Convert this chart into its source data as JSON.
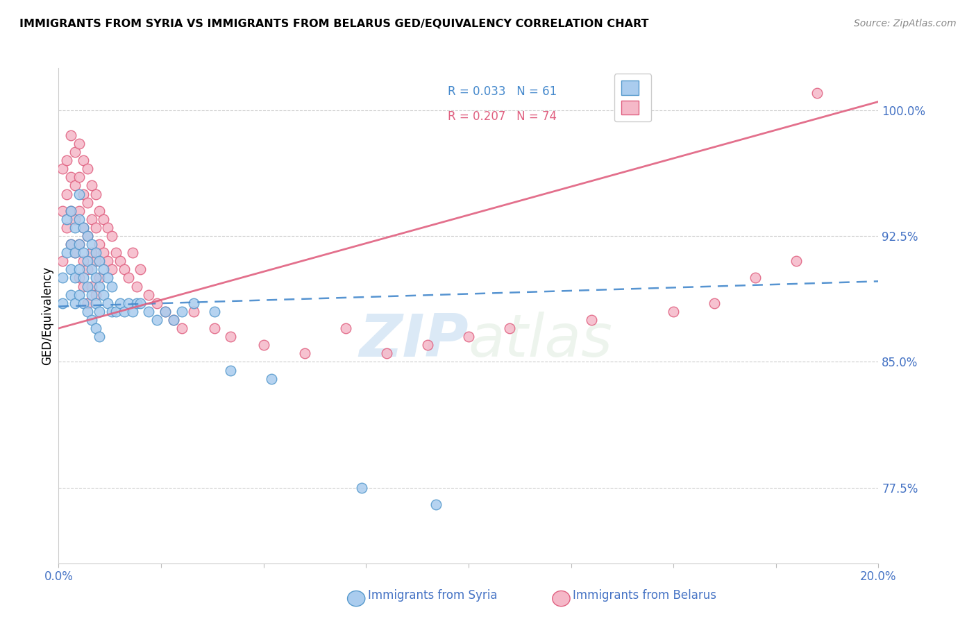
{
  "title": "IMMIGRANTS FROM SYRIA VS IMMIGRANTS FROM BELARUS GED/EQUIVALENCY CORRELATION CHART",
  "source": "Source: ZipAtlas.com",
  "ylabel": "GED/Equivalency",
  "xlim": [
    0.0,
    0.2
  ],
  "ylim": [
    73.0,
    102.5
  ],
  "color_syria_fill": "#aaccee",
  "color_syria_edge": "#5599cc",
  "color_belarus_fill": "#f5b8c8",
  "color_belarus_edge": "#e06080",
  "color_blue_line": "#4488cc",
  "color_pink_line": "#e06080",
  "color_axis_text": "#4472C4",
  "ytick_vals": [
    77.5,
    85.0,
    92.5,
    100.0
  ],
  "ytick_labels": [
    "77.5%",
    "85.0%",
    "92.5%",
    "100.0%"
  ],
  "syria_x": [
    0.001,
    0.001,
    0.002,
    0.002,
    0.003,
    0.003,
    0.003,
    0.003,
    0.004,
    0.004,
    0.004,
    0.004,
    0.005,
    0.005,
    0.005,
    0.005,
    0.005,
    0.006,
    0.006,
    0.006,
    0.006,
    0.007,
    0.007,
    0.007,
    0.007,
    0.008,
    0.008,
    0.008,
    0.008,
    0.009,
    0.009,
    0.009,
    0.009,
    0.01,
    0.01,
    0.01,
    0.01,
    0.011,
    0.011,
    0.012,
    0.012,
    0.013,
    0.013,
    0.014,
    0.015,
    0.016,
    0.017,
    0.018,
    0.019,
    0.02,
    0.022,
    0.024,
    0.026,
    0.028,
    0.03,
    0.033,
    0.038,
    0.042,
    0.052,
    0.074,
    0.092
  ],
  "syria_y": [
    88.5,
    90.0,
    91.5,
    93.5,
    94.0,
    92.0,
    90.5,
    89.0,
    93.0,
    91.5,
    90.0,
    88.5,
    95.0,
    93.5,
    92.0,
    90.5,
    89.0,
    93.0,
    91.5,
    90.0,
    88.5,
    92.5,
    91.0,
    89.5,
    88.0,
    92.0,
    90.5,
    89.0,
    87.5,
    91.5,
    90.0,
    88.5,
    87.0,
    91.0,
    89.5,
    88.0,
    86.5,
    90.5,
    89.0,
    90.0,
    88.5,
    89.5,
    88.0,
    88.0,
    88.5,
    88.0,
    88.5,
    88.0,
    88.5,
    88.5,
    88.0,
    87.5,
    88.0,
    87.5,
    88.0,
    88.5,
    88.0,
    84.5,
    84.0,
    77.5,
    76.5
  ],
  "belarus_x": [
    0.001,
    0.001,
    0.001,
    0.002,
    0.002,
    0.002,
    0.003,
    0.003,
    0.003,
    0.003,
    0.004,
    0.004,
    0.004,
    0.004,
    0.005,
    0.005,
    0.005,
    0.005,
    0.005,
    0.006,
    0.006,
    0.006,
    0.006,
    0.006,
    0.007,
    0.007,
    0.007,
    0.007,
    0.007,
    0.008,
    0.008,
    0.008,
    0.008,
    0.009,
    0.009,
    0.009,
    0.009,
    0.01,
    0.01,
    0.01,
    0.011,
    0.011,
    0.012,
    0.012,
    0.013,
    0.013,
    0.014,
    0.015,
    0.016,
    0.017,
    0.018,
    0.019,
    0.02,
    0.022,
    0.024,
    0.026,
    0.028,
    0.03,
    0.033,
    0.038,
    0.042,
    0.05,
    0.06,
    0.07,
    0.08,
    0.09,
    0.1,
    0.11,
    0.13,
    0.15,
    0.16,
    0.17,
    0.18,
    0.185
  ],
  "belarus_y": [
    96.5,
    94.0,
    91.0,
    97.0,
    95.0,
    93.0,
    98.5,
    96.0,
    94.0,
    92.0,
    97.5,
    95.5,
    93.5,
    91.5,
    98.0,
    96.0,
    94.0,
    92.0,
    90.0,
    97.0,
    95.0,
    93.0,
    91.0,
    89.5,
    96.5,
    94.5,
    92.5,
    90.5,
    88.5,
    95.5,
    93.5,
    91.5,
    89.5,
    95.0,
    93.0,
    91.0,
    89.0,
    94.0,
    92.0,
    90.0,
    93.5,
    91.5,
    93.0,
    91.0,
    92.5,
    90.5,
    91.5,
    91.0,
    90.5,
    90.0,
    91.5,
    89.5,
    90.5,
    89.0,
    88.5,
    88.0,
    87.5,
    87.0,
    88.0,
    87.0,
    86.5,
    86.0,
    85.5,
    87.0,
    85.5,
    86.0,
    86.5,
    87.0,
    87.5,
    88.0,
    88.5,
    90.0,
    91.0,
    101.0
  ]
}
